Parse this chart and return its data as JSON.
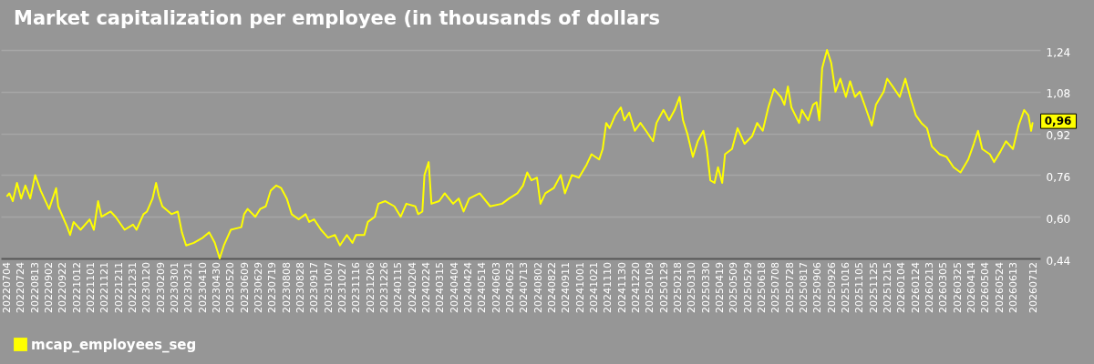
{
  "chart_data": {
    "type": "line",
    "title": "Market capitalization per employee (in thousands of dollars",
    "x": [
      "2022-07-04",
      "2022-07-07",
      "2022-07-12",
      "2022-07-18",
      "2022-07-24",
      "2022-07-30",
      "2022-08-06",
      "2022-08-13",
      "2022-08-21",
      "2022-09-02",
      "2022-09-12",
      "2022-09-15",
      "2022-09-28",
      "2022-10-02",
      "2022-10-07",
      "2022-10-17",
      "2022-10-30",
      "2022-11-05",
      "2022-11-11",
      "2022-11-16",
      "2022-11-29",
      "2022-12-06",
      "2022-12-19",
      "2022-12-31",
      "2023-01-05",
      "2023-01-15",
      "2023-01-20",
      "2023-01-28",
      "2023-02-02",
      "2023-02-06",
      "2023-02-11",
      "2023-02-24",
      "2023-03-05",
      "2023-03-11",
      "2023-03-17",
      "2023-03-28",
      "2023-04-10",
      "2023-04-19",
      "2023-04-27",
      "2023-05-04",
      "2023-05-10",
      "2023-05-20",
      "2023-06-04",
      "2023-06-08",
      "2023-06-13",
      "2023-06-24",
      "2023-07-01",
      "2023-07-09",
      "2023-07-16",
      "2023-07-24",
      "2023-07-31",
      "2023-08-08",
      "2023-08-15",
      "2023-08-25",
      "2023-09-04",
      "2023-09-09",
      "2023-09-16",
      "2023-09-26",
      "2023-10-06",
      "2023-10-16",
      "2023-10-23",
      "2023-11-02",
      "2023-11-10",
      "2023-11-15",
      "2023-11-27",
      "2023-12-02",
      "2023-12-12",
      "2023-12-17",
      "2023-12-27",
      "2024-01-09",
      "2024-01-18",
      "2024-01-26",
      "2024-02-08",
      "2024-02-12",
      "2024-02-18",
      "2024-02-21",
      "2024-02-27",
      "2024-03-02",
      "2024-03-13",
      "2024-03-21",
      "2024-04-02",
      "2024-04-10",
      "2024-04-17",
      "2024-04-25",
      "2024-05-10",
      "2024-05-25",
      "2024-06-11",
      "2024-06-21",
      "2024-07-03",
      "2024-07-11",
      "2024-07-17",
      "2024-07-23",
      "2024-07-31",
      "2024-08-05",
      "2024-08-12",
      "2024-08-24",
      "2024-09-03",
      "2024-09-09",
      "2024-09-19",
      "2024-09-29",
      "2024-10-10",
      "2024-10-17",
      "2024-10-28",
      "2024-11-02",
      "2024-11-07",
      "2024-11-12",
      "2024-11-20",
      "2024-11-28",
      "2024-12-03",
      "2024-12-10",
      "2024-12-18",
      "2024-12-26",
      "2025-01-03",
      "2025-01-13",
      "2025-01-18",
      "2025-01-28",
      "2025-02-05",
      "2025-02-13",
      "2025-02-20",
      "2025-02-25",
      "2025-03-03",
      "2025-03-11",
      "2025-03-18",
      "2025-03-26",
      "2025-03-31",
      "2025-04-05",
      "2025-04-11",
      "2025-04-16",
      "2025-04-22",
      "2025-04-26",
      "2025-05-06",
      "2025-05-14",
      "2025-05-24",
      "2025-06-04",
      "2025-06-11",
      "2025-06-19",
      "2025-06-27",
      "2025-07-05",
      "2025-07-15",
      "2025-07-20",
      "2025-07-25",
      "2025-07-30",
      "2025-08-10",
      "2025-08-14",
      "2025-08-23",
      "2025-08-30",
      "2025-09-04",
      "2025-09-08",
      "2025-09-12",
      "2025-09-19",
      "2025-09-25",
      "2025-10-01",
      "2025-10-08",
      "2025-10-16",
      "2025-10-22",
      "2025-10-29",
      "2025-11-05",
      "2025-11-13",
      "2025-11-22",
      "2025-11-28",
      "2025-12-09",
      "2025-12-14",
      "2025-12-22",
      "2026-01-01",
      "2026-01-09",
      "2026-01-16",
      "2026-01-24",
      "2026-02-01",
      "2026-02-09",
      "2026-02-16",
      "2026-02-27",
      "2026-03-09",
      "2026-03-19",
      "2026-03-29",
      "2026-04-09",
      "2026-04-17",
      "2026-04-23",
      "2026-04-29",
      "2026-05-10",
      "2026-05-16",
      "2026-05-25",
      "2026-06-02",
      "2026-06-12",
      "2026-06-20",
      "2026-06-28",
      "2026-07-04",
      "2026-07-08",
      "2026-07-10"
    ],
    "series": [
      {
        "name": "mcap_employees_seg",
        "color": "#ffff00",
        "values": [
          0.68,
          0.69,
          0.66,
          0.73,
          0.67,
          0.72,
          0.67,
          0.76,
          0.7,
          0.63,
          0.71,
          0.64,
          0.56,
          0.53,
          0.58,
          0.55,
          0.59,
          0.55,
          0.66,
          0.6,
          0.62,
          0.6,
          0.55,
          0.57,
          0.55,
          0.61,
          0.62,
          0.67,
          0.73,
          0.68,
          0.64,
          0.61,
          0.62,
          0.54,
          0.49,
          0.5,
          0.52,
          0.54,
          0.5,
          0.44,
          0.49,
          0.55,
          0.56,
          0.61,
          0.63,
          0.6,
          0.63,
          0.64,
          0.7,
          0.72,
          0.71,
          0.67,
          0.61,
          0.59,
          0.61,
          0.58,
          0.59,
          0.55,
          0.52,
          0.53,
          0.49,
          0.53,
          0.5,
          0.53,
          0.53,
          0.58,
          0.6,
          0.65,
          0.66,
          0.64,
          0.6,
          0.65,
          0.64,
          0.61,
          0.62,
          0.76,
          0.81,
          0.65,
          0.66,
          0.69,
          0.65,
          0.67,
          0.62,
          0.67,
          0.69,
          0.64,
          0.65,
          0.67,
          0.69,
          0.72,
          0.77,
          0.74,
          0.75,
          0.65,
          0.69,
          0.71,
          0.76,
          0.69,
          0.76,
          0.75,
          0.8,
          0.84,
          0.82,
          0.86,
          0.96,
          0.94,
          0.99,
          1.02,
          0.97,
          1.0,
          0.93,
          0.96,
          0.93,
          0.89,
          0.96,
          1.01,
          0.97,
          1.01,
          1.06,
          0.97,
          0.92,
          0.83,
          0.89,
          0.93,
          0.86,
          0.74,
          0.73,
          0.79,
          0.73,
          0.84,
          0.86,
          0.94,
          0.88,
          0.91,
          0.96,
          0.93,
          1.02,
          1.09,
          1.06,
          1.03,
          1.1,
          1.02,
          0.96,
          1.01,
          0.97,
          1.03,
          1.04,
          0.97,
          1.17,
          1.24,
          1.19,
          1.08,
          1.13,
          1.06,
          1.12,
          1.06,
          1.08,
          1.02,
          0.95,
          1.03,
          1.08,
          1.13,
          1.1,
          1.06,
          1.13,
          1.06,
          0.99,
          0.96,
          0.94,
          0.87,
          0.84,
          0.83,
          0.79,
          0.77,
          0.82,
          0.88,
          0.93,
          0.86,
          0.84,
          0.81,
          0.85,
          0.89,
          0.86,
          0.95,
          1.01,
          0.99,
          0.93,
          0.96
        ]
      }
    ],
    "xlim": [
      "2022-06-25",
      "2026-07-21"
    ],
    "xticks": [
      {
        "value": "2022-07-04",
        "label": "20220704"
      },
      {
        "value": "2022-07-24",
        "label": "20220724"
      },
      {
        "value": "2022-08-13",
        "label": "20220813"
      },
      {
        "value": "2022-09-02",
        "label": "20220902"
      },
      {
        "value": "2022-09-22",
        "label": "20220922"
      },
      {
        "value": "2022-10-12",
        "label": "20221012"
      },
      {
        "value": "2022-11-01",
        "label": "20221101"
      },
      {
        "value": "2022-11-21",
        "label": "20221121"
      },
      {
        "value": "2022-12-11",
        "label": "20221211"
      },
      {
        "value": "2022-12-31",
        "label": "20221231"
      },
      {
        "value": "2023-01-20",
        "label": "20230120"
      },
      {
        "value": "2023-02-09",
        "label": "20230209"
      },
      {
        "value": "2023-03-01",
        "label": "20230301"
      },
      {
        "value": "2023-03-21",
        "label": "20230321"
      },
      {
        "value": "2023-04-10",
        "label": "20230410"
      },
      {
        "value": "2023-04-30",
        "label": "20230430"
      },
      {
        "value": "2023-05-20",
        "label": "20230520"
      },
      {
        "value": "2023-06-09",
        "label": "20230609"
      },
      {
        "value": "2023-06-29",
        "label": "20230629"
      },
      {
        "value": "2023-07-19",
        "label": "20230719"
      },
      {
        "value": "2023-08-08",
        "label": "20230808"
      },
      {
        "value": "2023-08-28",
        "label": "20230828"
      },
      {
        "value": "2023-09-17",
        "label": "20230917"
      },
      {
        "value": "2023-10-07",
        "label": "20231007"
      },
      {
        "value": "2023-10-27",
        "label": "20231027"
      },
      {
        "value": "2023-11-16",
        "label": "20231116"
      },
      {
        "value": "2023-12-06",
        "label": "20231206"
      },
      {
        "value": "2023-12-26",
        "label": "20231226"
      },
      {
        "value": "2024-01-15",
        "label": "20240115"
      },
      {
        "value": "2024-02-04",
        "label": "20240204"
      },
      {
        "value": "2024-02-24",
        "label": "20240224"
      },
      {
        "value": "2024-03-15",
        "label": "20240315"
      },
      {
        "value": "2024-04-04",
        "label": "20240404"
      },
      {
        "value": "2024-04-24",
        "label": "20240424"
      },
      {
        "value": "2024-05-14",
        "label": "20240514"
      },
      {
        "value": "2024-06-03",
        "label": "20240603"
      },
      {
        "value": "2024-06-23",
        "label": "20240623"
      },
      {
        "value": "2024-07-13",
        "label": "20240713"
      },
      {
        "value": "2024-08-02",
        "label": "20240802"
      },
      {
        "value": "2024-08-22",
        "label": "20240822"
      },
      {
        "value": "2024-09-11",
        "label": "20240911"
      },
      {
        "value": "2024-10-01",
        "label": "20241001"
      },
      {
        "value": "2024-10-21",
        "label": "20241021"
      },
      {
        "value": "2024-11-10",
        "label": "20241110"
      },
      {
        "value": "2024-11-30",
        "label": "20241130"
      },
      {
        "value": "2024-12-20",
        "label": "20241220"
      },
      {
        "value": "2025-01-09",
        "label": "20250109"
      },
      {
        "value": "2025-01-29",
        "label": "20250129"
      },
      {
        "value": "2025-02-18",
        "label": "20250218"
      },
      {
        "value": "2025-03-10",
        "label": "20250310"
      },
      {
        "value": "2025-03-30",
        "label": "20250330"
      },
      {
        "value": "2025-04-19",
        "label": "20250419"
      },
      {
        "value": "2025-05-09",
        "label": "20250509"
      },
      {
        "value": "2025-05-29",
        "label": "20250529"
      },
      {
        "value": "2025-06-18",
        "label": "20250618"
      },
      {
        "value": "2025-07-08",
        "label": "20250708"
      },
      {
        "value": "2025-07-28",
        "label": "20250728"
      },
      {
        "value": "2025-08-17",
        "label": "20250817"
      },
      {
        "value": "2025-09-06",
        "label": "20250906"
      },
      {
        "value": "2025-09-26",
        "label": "20250926"
      },
      {
        "value": "2025-10-16",
        "label": "20251016"
      },
      {
        "value": "2025-11-05",
        "label": "20251105"
      },
      {
        "value": "2025-11-25",
        "label": "20251125"
      },
      {
        "value": "2025-12-15",
        "label": "20251215"
      },
      {
        "value": "2026-01-04",
        "label": "20260104"
      },
      {
        "value": "2026-01-24",
        "label": "20260124"
      },
      {
        "value": "2026-02-13",
        "label": "20260213"
      },
      {
        "value": "2026-03-05",
        "label": "20260305"
      },
      {
        "value": "2026-03-25",
        "label": "20260325"
      },
      {
        "value": "2026-04-14",
        "label": "20260414"
      },
      {
        "value": "2026-05-04",
        "label": "20260504"
      },
      {
        "value": "2026-05-24",
        "label": "20260524"
      },
      {
        "value": "2026-06-13",
        "label": "20260613"
      },
      {
        "value": "2026-07-12",
        "label": "20260712"
      }
    ],
    "ylim": [
      0.44,
      1.24
    ],
    "yticks": [
      {
        "value": 0.44,
        "label": "0,44"
      },
      {
        "value": 0.6,
        "label": "0,60"
      },
      {
        "value": 0.76,
        "label": "0,76"
      },
      {
        "value": 0.92,
        "label": "0,92"
      },
      {
        "value": 1.08,
        "label": "1,08"
      },
      {
        "value": 1.24,
        "label": "1,24"
      }
    ],
    "grid": "y",
    "legend": "bottom left",
    "annotations": [
      {
        "text": "0,96",
        "x": "2026-07-10",
        "y": 0.96
      }
    ]
  }
}
